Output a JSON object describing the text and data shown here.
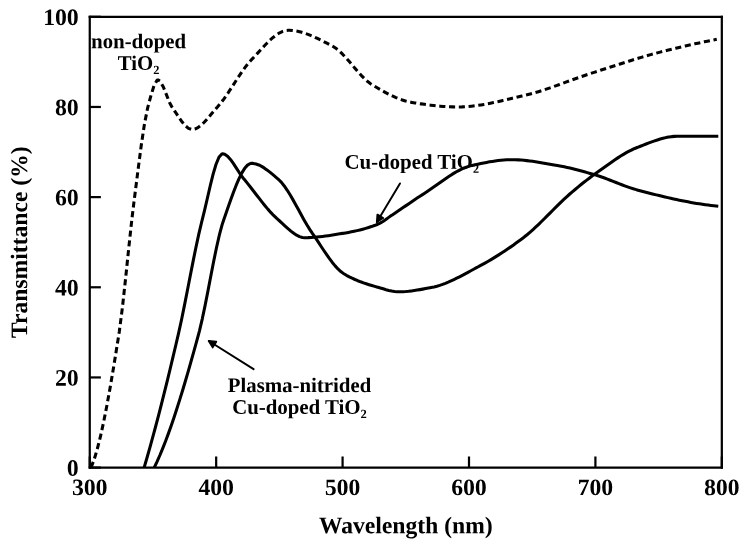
{
  "chart_data": {
    "type": "line",
    "xlabel": "Wavelength (nm)",
    "ylabel": "Transmittance (%)",
    "xlim": [
      300,
      800
    ],
    "ylim": [
      0,
      100
    ],
    "xticks": [
      300,
      400,
      500,
      600,
      700,
      800
    ],
    "yticks": [
      0,
      20,
      40,
      60,
      80,
      100
    ],
    "grid": false,
    "legend": false,
    "marker": "none",
    "series": [
      {
        "color": "#000000",
        "line_style": "dashed",
        "x": [
          301,
          323,
          335,
          346,
          354,
          365,
          381,
          401,
          428,
          457,
          492,
          523,
          555,
          591,
          643,
          697,
          749,
          796
        ],
        "values": [
          0,
          29.5,
          59,
          80,
          86,
          80,
          75,
          80,
          90.5,
          97,
          93.5,
          85,
          81,
          80,
          82.5,
          87.5,
          92,
          95
        ]
      },
      {
        "color": "#000000",
        "line_style": "solid",
        "x": [
          343,
          370,
          389,
          405,
          422,
          449,
          470,
          501,
          528,
          539,
          564,
          602,
          634,
          670,
          699,
          733,
          796
        ],
        "values": [
          0,
          29.5,
          55,
          69.6,
          64,
          55,
          51,
          52,
          54,
          56,
          60.7,
          67,
          68.3,
          67,
          65,
          61.6,
          58
        ]
      },
      {
        "color": "#000000",
        "line_style": "solid",
        "x": [
          351,
          386,
          406,
          428,
          449,
          476,
          501,
          528,
          544,
          571,
          607,
          643,
          681,
          699,
          733,
          765,
          796
        ],
        "values": [
          0,
          29.5,
          55,
          67.5,
          64,
          52,
          43,
          40,
          39,
          40,
          44.5,
          51,
          61,
          65,
          71,
          73.5,
          73.5
        ]
      }
    ],
    "annotations": [
      {
        "text": "non-doped\nTiO₂",
        "x": 354,
        "y": 86
      },
      {
        "text": "Cu-doped TiO₂",
        "x": 524,
        "y": 53
      },
      {
        "text": "Plasma-nitrided\nCu-doped TiO₂",
        "x": 389,
        "y": 29
      }
    ]
  }
}
